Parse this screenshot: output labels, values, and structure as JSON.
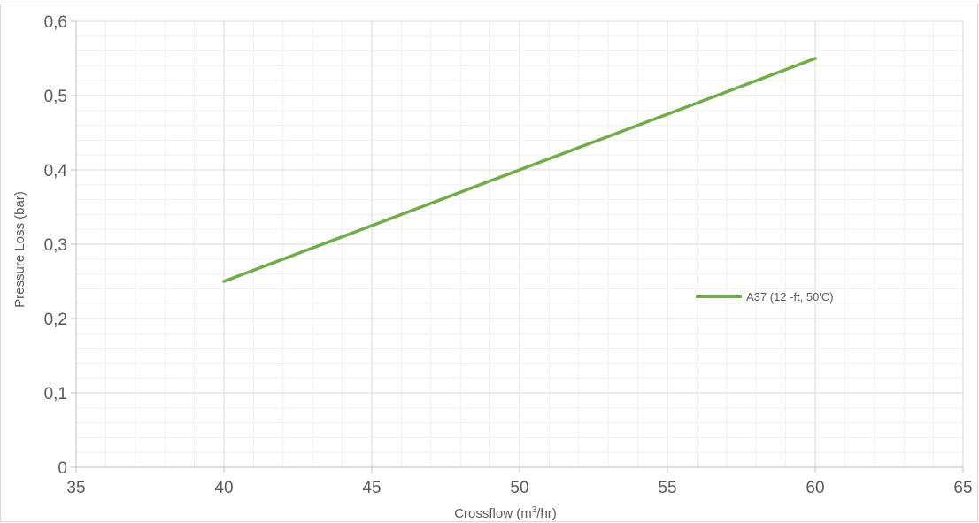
{
  "chart_data": {
    "type": "line",
    "xlabel": "Crossflow (m³/hr)",
    "ylabel": "Pressure Loss (bar)",
    "xlim": [
      35,
      65
    ],
    "ylim": [
      0,
      0.6
    ],
    "x_ticks": [
      "35",
      "40",
      "45",
      "50",
      "55",
      "60",
      "65"
    ],
    "y_ticks": [
      "0",
      "0,1",
      "0,2",
      "0,3",
      "0,4",
      "0,5",
      "0,6"
    ],
    "x_tick_values": [
      35,
      40,
      45,
      50,
      55,
      60,
      65
    ],
    "y_tick_values": [
      0,
      0.1,
      0.2,
      0.3,
      0.4,
      0.5,
      0.6
    ],
    "major_grid": true,
    "minor_grid": true,
    "legend_position": "right",
    "series": [
      {
        "name": "A37 (12 -ft, 50'C)",
        "color": "#70ad47",
        "x": [
          40,
          60
        ],
        "y": [
          0.25,
          0.55
        ]
      }
    ]
  }
}
